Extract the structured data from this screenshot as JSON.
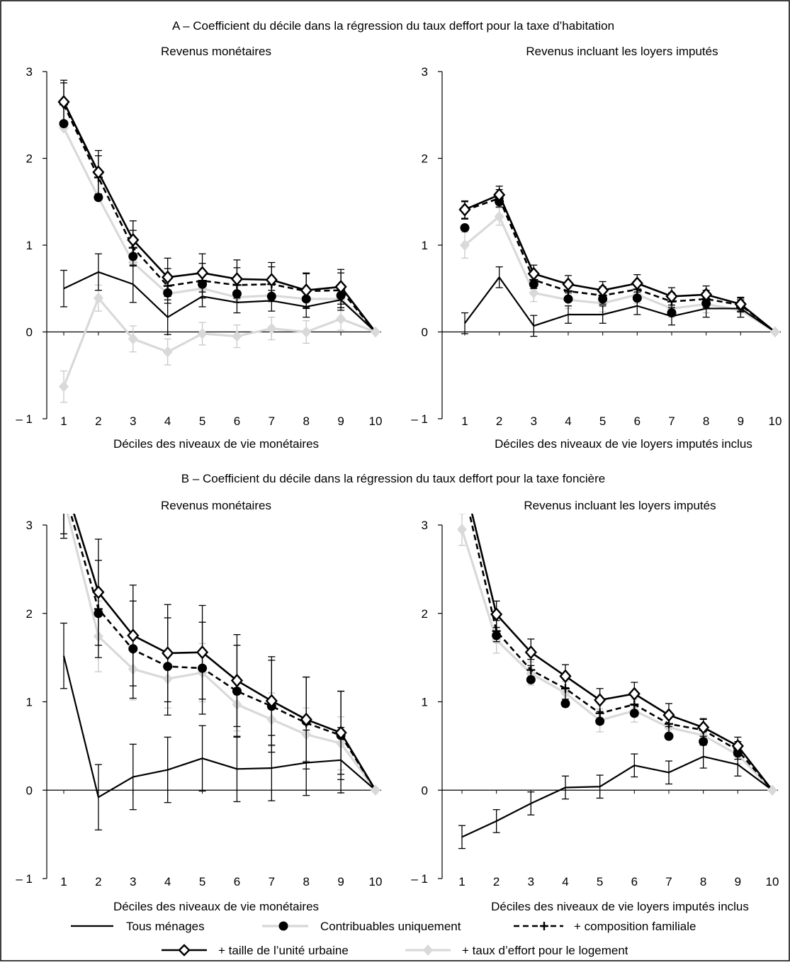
{
  "panel_titles": {
    "a": "A – Coefficient du décile dans la régression du taux deffort pour la taxe d’habitation",
    "b": "B – Coefficient du décile dans la régression du taux deffort pour la taxe foncière"
  },
  "legend": [
    {
      "key": "tous",
      "label": "Tous ménages"
    },
    {
      "key": "contrib",
      "label": "Contribuables uniquement"
    },
    {
      "key": "compo",
      "label": "+ composition familiale"
    },
    {
      "key": "taille",
      "label": "+ taille de l’unité urbaine"
    },
    {
      "key": "taux",
      "label": "+ taux d’effort pour le logement"
    }
  ],
  "colors": {
    "black": "#000000",
    "gray": "#d9d9d9",
    "light_gray": "#c8c8c8"
  },
  "chart_data": [
    {
      "type": "line",
      "title": "Revenus monétaires",
      "xlabel": "Déciles des niveaux de vie monétaires",
      "categories": [
        "1",
        "2",
        "3",
        "4",
        "5",
        "6",
        "7",
        "8",
        "9",
        "10"
      ],
      "ylim": [
        -1,
        3
      ],
      "yticks": [
        "3",
        "2",
        "1",
        "0",
        "– 1"
      ],
      "series": [
        {
          "name": "Tous ménages",
          "values": [
            0.5,
            0.69,
            0.55,
            0.17,
            0.41,
            0.34,
            0.36,
            0.29,
            0.37,
            0
          ],
          "errors": [
            0.21,
            0.21,
            0.21,
            0.2,
            0.12,
            0.12,
            0.12,
            0.12,
            0.12,
            0
          ]
        },
        {
          "name": "Contribuables uniquement",
          "values": [
            2.4,
            1.55,
            0.87,
            0.45,
            0.55,
            0.44,
            0.41,
            0.38,
            0.42,
            0
          ]
        },
        {
          "name": "+ composition familiale",
          "values": [
            2.62,
            1.78,
            0.97,
            0.53,
            0.59,
            0.54,
            0.55,
            0.47,
            0.48,
            0
          ],
          "errors": [
            0.25,
            0.25,
            0.2,
            0.2,
            0.2,
            0.2,
            0.2,
            0.2,
            0.2,
            0
          ]
        },
        {
          "name": "+ taille de l’unité urbaine",
          "values": [
            2.65,
            1.84,
            1.06,
            0.63,
            0.68,
            0.61,
            0.6,
            0.48,
            0.52,
            0
          ],
          "errors": [
            0.25,
            0.25,
            0.22,
            0.22,
            0.22,
            0.22,
            0.2,
            0.2,
            0.2,
            0
          ]
        },
        {
          "name": "+ taux d’effort pour le logement",
          "values": [
            -0.63,
            0.39,
            -0.08,
            -0.23,
            -0.02,
            -0.05,
            0.04,
            0,
            0.15,
            0
          ],
          "errors": [
            0.18,
            0.15,
            0.15,
            0.15,
            0.13,
            0.13,
            0.13,
            0.13,
            0.13,
            0
          ],
          "values_upper": [
            2.35,
            1.55,
            0.8,
            0.44,
            0.5,
            0.4,
            0.42,
            0.38,
            0.38,
            0
          ]
        }
      ]
    },
    {
      "type": "line",
      "title": "Revenus incluant les loyers imputés",
      "xlabel": "Déciles des niveaux de vie loyers imputés inclus",
      "categories": [
        "1",
        "2",
        "3",
        "4",
        "5",
        "6",
        "7",
        "8",
        "9",
        "10"
      ],
      "ylim": [
        -1,
        3
      ],
      "yticks": [
        "3",
        "2",
        "1",
        "0",
        "– 1"
      ],
      "series": [
        {
          "name": "Tous ménages",
          "values": [
            0.1,
            0.63,
            0.07,
            0.2,
            0.2,
            0.3,
            0.18,
            0.27,
            0.27,
            0
          ],
          "errors": [
            0.12,
            0.12,
            0.12,
            0.1,
            0.1,
            0.1,
            0.1,
            0.1,
            0.1,
            0
          ]
        },
        {
          "name": "Contribuables uniquement",
          "values": [
            1.2,
            1.5,
            0.55,
            0.38,
            0.38,
            0.39,
            0.22,
            0.33,
            0.3,
            0
          ]
        },
        {
          "name": "+ composition familiale",
          "values": [
            1.4,
            1.54,
            0.6,
            0.47,
            0.42,
            0.49,
            0.35,
            0.38,
            0.31,
            0
          ],
          "errors": [
            0.1,
            0.1,
            0.1,
            0.1,
            0.1,
            0.1,
            0.1,
            0.1,
            0.08,
            0
          ]
        },
        {
          "name": "+ taille de l’unité urbaine",
          "values": [
            1.41,
            1.58,
            0.67,
            0.55,
            0.48,
            0.56,
            0.41,
            0.43,
            0.32,
            0
          ],
          "errors": [
            0.1,
            0.1,
            0.1,
            0.1,
            0.1,
            0.1,
            0.1,
            0.1,
            0.08,
            0
          ]
        },
        {
          "name": "+ taux d’effort pour le logement",
          "values": [
            1.0,
            1.33,
            0.45,
            0.37,
            0.33,
            0.43,
            0.27,
            0.32,
            0.25,
            0
          ],
          "errors": [
            0.15,
            0.1,
            0.1,
            0.1,
            0.1,
            0.1,
            0.1,
            0.1,
            0.08,
            0
          ]
        }
      ]
    },
    {
      "type": "line",
      "title": "Revenus monétaires",
      "xlabel": "Déciles des niveaux de vie monétaires",
      "categories": [
        "1",
        "2",
        "3",
        "4",
        "5",
        "6",
        "7",
        "8",
        "9",
        "10"
      ],
      "ylim": [
        -1,
        3
      ],
      "yticks": [
        "3",
        "2",
        "1",
        "0",
        "– 1"
      ],
      "series": [
        {
          "name": "Tous ménages",
          "values": [
            1.52,
            -0.08,
            0.15,
            0.23,
            0.36,
            0.24,
            0.25,
            0.31,
            0.34,
            0
          ],
          "errors": [
            0.37,
            0.37,
            0.37,
            0.37,
            0.37,
            0.37,
            0.37,
            0.37,
            0.37,
            0
          ]
        },
        {
          "name": "Contribuables uniquement",
          "values": [
            3.4,
            2.0,
            1.6,
            1.4,
            1.38,
            1.12,
            0.95,
            0.78,
            0.62,
            0
          ]
        },
        {
          "name": "+ composition familiale",
          "values": [
            3.4,
            2.05,
            1.59,
            1.4,
            1.38,
            1.12,
            0.95,
            0.76,
            0.62,
            0
          ],
          "errors": [
            0.55,
            0.55,
            0.55,
            0.55,
            0.52,
            0.52,
            0.52,
            0.52,
            0.5,
            0
          ]
        },
        {
          "name": "+ taille de l’unité urbaine",
          "values": [
            3.5,
            2.24,
            1.75,
            1.55,
            1.56,
            1.24,
            1.01,
            0.8,
            0.65,
            0
          ],
          "errors": [
            0.6,
            0.6,
            0.57,
            0.55,
            0.53,
            0.52,
            0.5,
            0.48,
            0.47,
            0
          ]
        },
        {
          "name": "+ taux d’effort pour le logement",
          "values": [
            3.3,
            1.74,
            1.37,
            1.26,
            1.33,
            0.97,
            0.8,
            0.63,
            0.53,
            0
          ],
          "errors": [
            0.4,
            0.4,
            0.35,
            0.33,
            0.33,
            0.3,
            0.3,
            0.3,
            0.3,
            0
          ]
        }
      ]
    },
    {
      "type": "line",
      "title": "Revenus incluant les loyers imputés",
      "xlabel": "Déciles des niveaux de vie loyers imputés inclus",
      "categories": [
        "1",
        "2",
        "3",
        "4",
        "5",
        "6",
        "7",
        "8",
        "9",
        "10"
      ],
      "ylim": [
        -1,
        3
      ],
      "yticks": [
        "3",
        "2",
        "1",
        "0",
        "– 1"
      ],
      "series": [
        {
          "name": "Tous ménages",
          "values": [
            -0.53,
            -0.35,
            -0.15,
            0.03,
            0.04,
            0.28,
            0.2,
            0.38,
            0.29,
            0
          ],
          "errors": [
            0.13,
            0.13,
            0.13,
            0.13,
            0.13,
            0.13,
            0.13,
            0.13,
            0.13,
            0
          ]
        },
        {
          "name": "Contribuables uniquement",
          "values": [
            3.4,
            1.75,
            1.25,
            0.98,
            0.78,
            0.87,
            0.61,
            0.55,
            0.42,
            0
          ]
        },
        {
          "name": "+ composition familiale",
          "values": [
            3.5,
            1.8,
            1.36,
            1.15,
            0.87,
            0.97,
            0.75,
            0.68,
            0.45,
            0
          ],
          "errors": [
            0.12,
            0.12,
            0.12,
            0.12,
            0.12,
            0.12,
            0.12,
            0.12,
            0.1,
            0
          ]
        },
        {
          "name": "+ taille de l’unité urbaine",
          "values": [
            3.6,
            1.99,
            1.56,
            1.29,
            1.02,
            1.09,
            0.85,
            0.71,
            0.5,
            0
          ],
          "errors": [
            0.15,
            0.15,
            0.15,
            0.13,
            0.13,
            0.13,
            0.13,
            0.1,
            0.1,
            0
          ]
        },
        {
          "name": "+ taux d’effort pour le logement",
          "values": [
            2.95,
            1.7,
            1.32,
            1.1,
            0.79,
            0.9,
            0.71,
            0.62,
            0.4,
            0
          ],
          "errors": [
            0.18,
            0.15,
            0.13,
            0.13,
            0.13,
            0.13,
            0.13,
            0.1,
            0.1,
            0
          ]
        }
      ]
    }
  ]
}
